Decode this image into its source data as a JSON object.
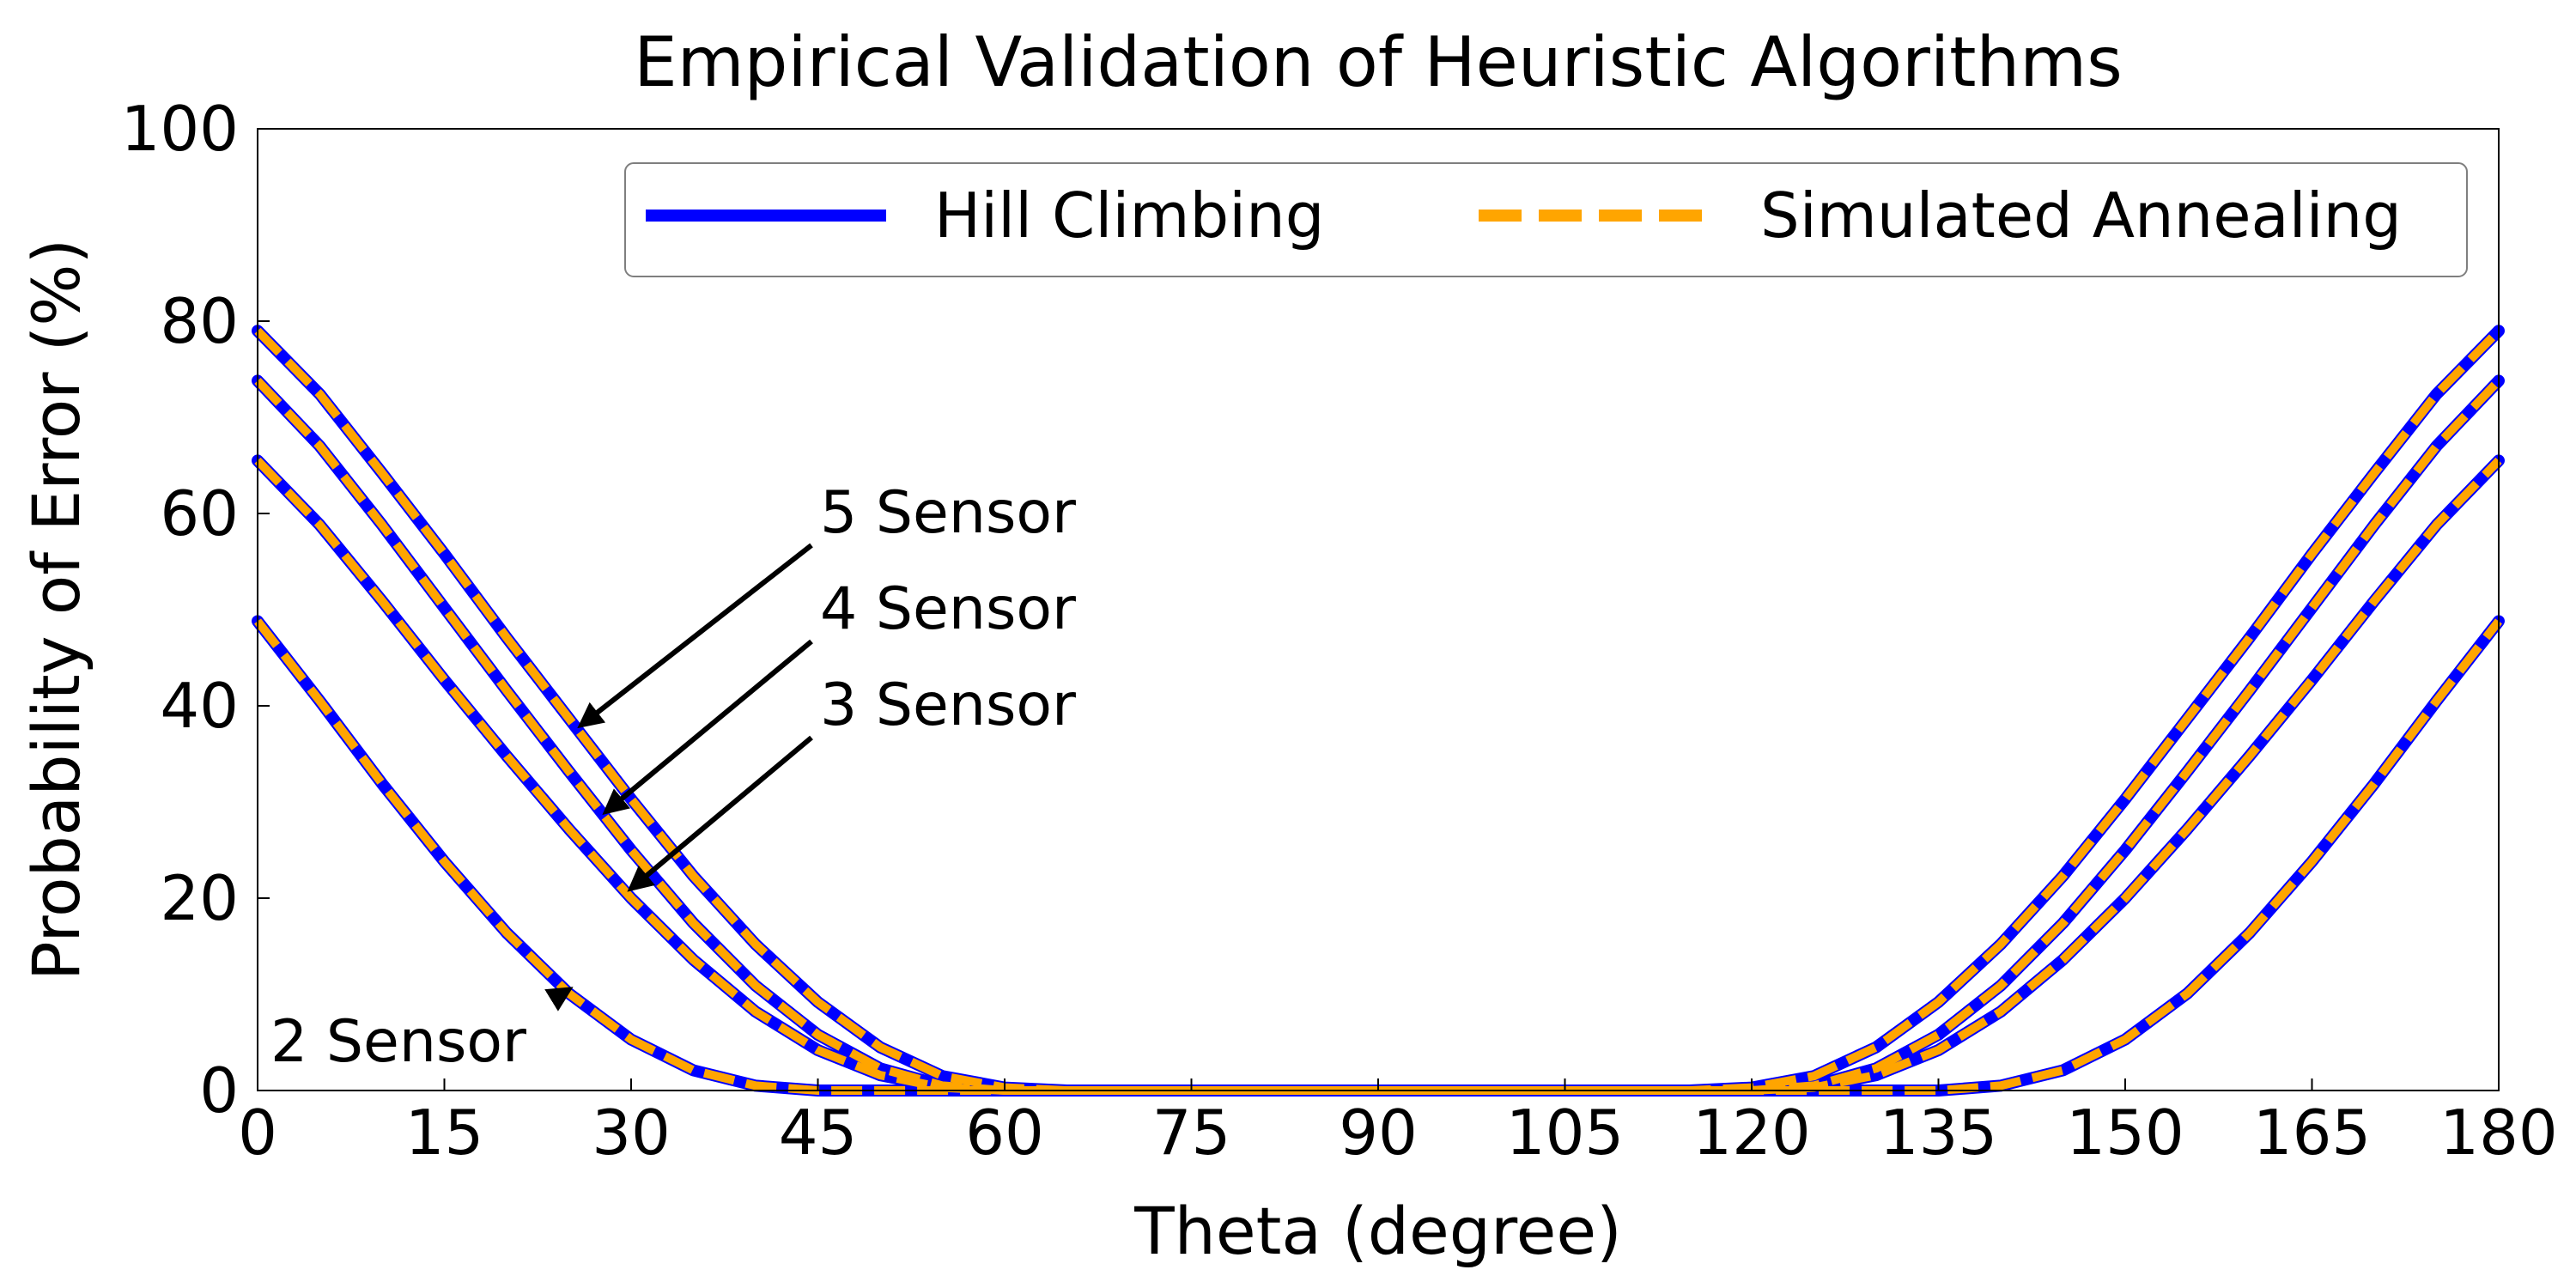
{
  "chart_data": {
    "type": "line",
    "title": "Empirical Validation of Heuristic Algorithms",
    "xlabel": "Theta (degree)",
    "ylabel": "Probability of Error (%)",
    "xlim": [
      0,
      180
    ],
    "ylim": [
      0,
      100
    ],
    "xticks": [
      0,
      15,
      30,
      45,
      60,
      75,
      90,
      105,
      120,
      135,
      150,
      165,
      180
    ],
    "yticks": [
      0,
      20,
      40,
      60,
      80,
      100
    ],
    "xtick_labels": [
      "0",
      "15",
      "30",
      "45",
      "60",
      "75",
      "90",
      "105",
      "120",
      "135",
      "150",
      "165",
      "180"
    ],
    "ytick_labels": [
      "0",
      "20",
      "40",
      "60",
      "80",
      "100"
    ],
    "grid": false,
    "legend": {
      "placement": "top-right",
      "columns": 2,
      "entries": [
        {
          "label": "Hill Climbing",
          "color": "#0000ff",
          "style": "solid"
        },
        {
          "label": "Simulated Annealing",
          "color": "#ffa500",
          "style": "dashed"
        }
      ]
    },
    "x": [
      0,
      5,
      10,
      15,
      20,
      25,
      30,
      35,
      40,
      45,
      50,
      55,
      60,
      65,
      70,
      75,
      80,
      85,
      90,
      95,
      100,
      105,
      110,
      115,
      120,
      125,
      130,
      135,
      140,
      145,
      150,
      155,
      160,
      165,
      170,
      175,
      180
    ],
    "series": [
      {
        "name": "Hill Climbing",
        "group": "5 Sensor",
        "values": [
          79,
          72.4,
          64.2,
          55.8,
          47.1,
          38.7,
          30.3,
          22.3,
          15.2,
          9.2,
          4.5,
          1.5,
          0.3,
          0,
          0,
          0,
          0,
          0,
          0,
          0,
          0,
          0,
          0,
          0,
          0.3,
          1.5,
          4.5,
          9.2,
          15.2,
          22.3,
          30.3,
          38.7,
          47.1,
          55.8,
          64.2,
          72.4,
          79
        ]
      },
      {
        "name": "Hill Climbing",
        "group": "4 Sensor",
        "values": [
          73.8,
          67,
          58.8,
          50.2,
          41.6,
          33.2,
          25,
          17.4,
          10.9,
          5.8,
          2.3,
          0.5,
          0,
          0,
          0,
          0,
          0,
          0,
          0,
          0,
          0,
          0,
          0,
          0,
          0,
          0.5,
          2.3,
          5.8,
          10.9,
          17.4,
          25,
          33.2,
          41.6,
          50.2,
          58.8,
          67,
          73.8
        ]
      },
      {
        "name": "Hill Climbing",
        "group": "3 Sensor",
        "values": [
          65.5,
          58.8,
          50.9,
          42.7,
          34.8,
          27.2,
          20,
          13.6,
          8.2,
          4.2,
          1.6,
          0.3,
          0,
          0,
          0,
          0,
          0,
          0,
          0,
          0,
          0,
          0,
          0,
          0,
          0,
          0.3,
          1.6,
          4.2,
          8.2,
          13.6,
          20,
          27.2,
          34.8,
          42.7,
          50.9,
          58.8,
          65.5
        ]
      },
      {
        "name": "Hill Climbing",
        "group": "2 Sensor",
        "values": [
          48.8,
          40.5,
          31.9,
          23.8,
          16.4,
          10.1,
          5.3,
          2.1,
          0.5,
          0,
          0,
          0,
          0,
          0,
          0,
          0,
          0,
          0,
          0,
          0,
          0,
          0,
          0,
          0,
          0,
          0,
          0,
          0,
          0.5,
          2.1,
          5.3,
          10.1,
          16.4,
          23.8,
          31.9,
          40.5,
          48.8
        ]
      },
      {
        "name": "Simulated Annealing",
        "group": "5 Sensor",
        "values": [
          79,
          72.4,
          64.2,
          55.8,
          47.1,
          38.7,
          30.3,
          22.3,
          15.2,
          9.2,
          4.5,
          1.5,
          0.3,
          0,
          0,
          0,
          0,
          0,
          0,
          0,
          0,
          0,
          0,
          0,
          0.3,
          1.5,
          4.5,
          9.2,
          15.2,
          22.3,
          30.3,
          38.7,
          47.1,
          55.8,
          64.2,
          72.4,
          79
        ]
      },
      {
        "name": "Simulated Annealing",
        "group": "4 Sensor",
        "values": [
          73.8,
          67,
          58.8,
          50.2,
          41.6,
          33.2,
          25,
          17.4,
          10.9,
          5.8,
          2.3,
          0.5,
          0,
          0,
          0,
          0,
          0,
          0,
          0,
          0,
          0,
          0,
          0,
          0,
          0,
          0.5,
          2.3,
          5.8,
          10.9,
          17.4,
          25,
          33.2,
          41.6,
          50.2,
          58.8,
          67,
          73.8
        ]
      },
      {
        "name": "Simulated Annealing",
        "group": "3 Sensor",
        "values": [
          65.5,
          58.8,
          50.9,
          42.7,
          34.8,
          27.2,
          20,
          13.6,
          8.2,
          4.2,
          1.6,
          0.3,
          0,
          0,
          0,
          0,
          0,
          0,
          0,
          0,
          0,
          0,
          0,
          0,
          0,
          0.3,
          1.6,
          4.2,
          8.2,
          13.6,
          20,
          27.2,
          34.8,
          42.7,
          50.9,
          58.8,
          65.5
        ]
      },
      {
        "name": "Simulated Annealing",
        "group": "2 Sensor",
        "values": [
          48.8,
          40.5,
          31.9,
          23.8,
          16.4,
          10.1,
          5.3,
          2.1,
          0.5,
          0,
          0,
          0,
          0,
          0,
          0,
          0,
          0,
          0,
          0,
          0,
          0,
          0,
          0,
          0,
          0,
          0,
          0,
          0,
          0.5,
          2.1,
          5.3,
          10.1,
          16.4,
          23.8,
          31.9,
          40.5,
          48.8
        ]
      }
    ],
    "annotations": [
      {
        "text": "5 Sensor",
        "target": [
          26,
          38
        ]
      },
      {
        "text": "4 Sensor",
        "target": [
          28,
          29
        ]
      },
      {
        "text": "3 Sensor",
        "target": [
          30,
          21
        ]
      },
      {
        "text": "2 Sensor",
        "target": [
          25,
          10.5
        ]
      }
    ]
  }
}
